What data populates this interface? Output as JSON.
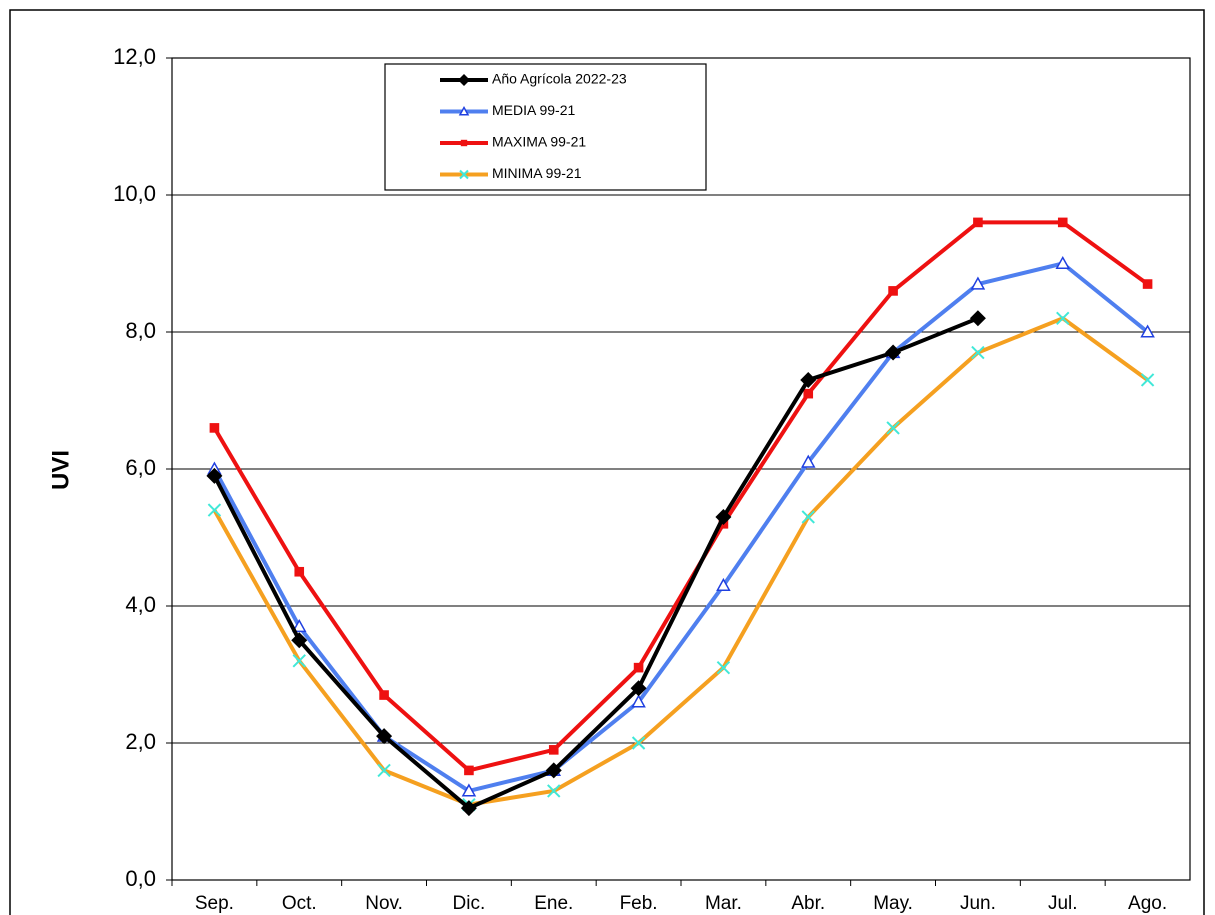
{
  "chart_data": {
    "type": "line",
    "y_label": "UVI",
    "categories": [
      "Sep.",
      "Oct.",
      "Nov.",
      "Dic.",
      "Ene.",
      "Feb.",
      "Mar.",
      "Abr.",
      "May.",
      "Jun.",
      "Jul.",
      "Ago."
    ],
    "series": [
      {
        "name": "Año  Agrícola 2022-23",
        "color": "#000000",
        "marker": "diamond",
        "marker_color": "#000000",
        "values": [
          5.9,
          3.5,
          2.1,
          1.05,
          1.6,
          2.8,
          5.3,
          7.3,
          7.7,
          8.2,
          null,
          null
        ]
      },
      {
        "name": "MEDIA 99-21",
        "color": "#4f7fef",
        "marker": "triangle",
        "marker_color": "#2040e0",
        "values": [
          6.0,
          3.7,
          2.1,
          1.3,
          1.6,
          2.6,
          4.3,
          6.1,
          7.7,
          8.7,
          9.0,
          8.0
        ]
      },
      {
        "name": "MAXIMA 99-21",
        "color": "#ee1111",
        "marker": "square",
        "marker_color": "#ee1111",
        "values": [
          6.6,
          4.5,
          2.7,
          1.6,
          1.9,
          3.1,
          5.2,
          7.1,
          8.6,
          9.6,
          9.6,
          8.7
        ]
      },
      {
        "name": "MINIMA 99-21",
        "color": "#f5a020",
        "marker": "x",
        "marker_color": "#40e8d8",
        "values": [
          5.4,
          3.2,
          1.6,
          1.1,
          1.3,
          2.0,
          3.1,
          5.3,
          6.6,
          7.7,
          8.2,
          7.3
        ]
      }
    ],
    "ylim": [
      0,
      12
    ],
    "yticks": [
      {
        "value": 0,
        "label": "0,0"
      },
      {
        "value": 2,
        "label": "2,0"
      },
      {
        "value": 4,
        "label": "4,0"
      },
      {
        "value": 6,
        "label": "6,0"
      },
      {
        "value": 8,
        "label": "8,0"
      },
      {
        "value": 10,
        "label": "10,0"
      },
      {
        "value": 12,
        "label": "12,0"
      }
    ],
    "grid": true
  }
}
